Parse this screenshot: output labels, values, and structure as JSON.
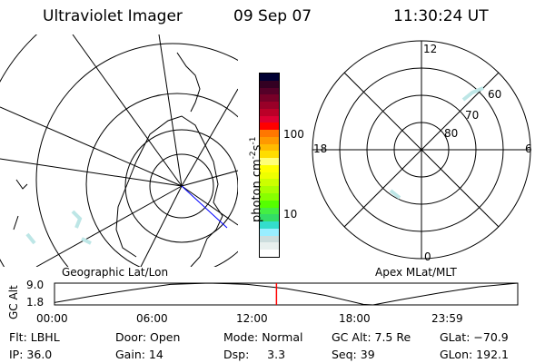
{
  "header": {
    "instrument": "Ultraviolet Imager",
    "date": "09 Sep 07",
    "time": "11:30:24 UT"
  },
  "colorbar": {
    "label": "photon cm",
    "label_sup1": "-2",
    "label_mid": "s",
    "label_sup2": "-1",
    "ticks": [
      "100",
      "10"
    ],
    "colors": [
      "#000033",
      "#330022",
      "#550028",
      "#770028",
      "#990028",
      "#bb0028",
      "#dd0033",
      "#ff0000",
      "#ff7700",
      "#ff9900",
      "#ffbb00",
      "#ffdd00",
      "#ffff77",
      "#ffff00",
      "#eeff00",
      "#ccff00",
      "#aaff00",
      "#88ff00",
      "#55ff00",
      "#44ee44",
      "#33dd66",
      "#33ddcc",
      "#99eeff",
      "#ccdddd",
      "#e8f0ee",
      "#ffffff"
    ]
  },
  "left_map": {
    "label": "Geographic Lat/Lon"
  },
  "right_map": {
    "label": "Apex MLat/MLT",
    "mlt_labels": {
      "top": "12",
      "left": "18",
      "right": "6",
      "bottom": "0"
    },
    "lat_labels": [
      "60",
      "70",
      "80"
    ]
  },
  "chart_data": {
    "type": "line",
    "ylabel": "GC Alt",
    "yticks": [
      "9.0",
      "1.8"
    ],
    "ylim": [
      1.8,
      9.0
    ],
    "xticks": [
      "00:00",
      "06:00",
      "12:00",
      "18:00",
      "23:59"
    ],
    "x": [
      0,
      2,
      4,
      6,
      8,
      10,
      12,
      14,
      16,
      16.5,
      18,
      20,
      22,
      24
    ],
    "values": [
      2.6,
      4.8,
      6.8,
      8.6,
      9.0,
      8.6,
      7.2,
      5.0,
      2.0,
      1.8,
      3.6,
      5.8,
      7.8,
      9.0
    ],
    "current_time_marker": 11.5,
    "marker_color": "#ff0000"
  },
  "info": {
    "filter": "Flt: LBHL",
    "ip": "IP: 36.0",
    "door": "Door: Open",
    "gain": "Gain: 14",
    "mode": "Mode: Normal",
    "dsp": "Dsp:     3.3",
    "gc_alt": "GC Alt: 7.5 Re",
    "seq": "Seq: 39",
    "glat": "GLat: −70.9",
    "glon": "GLon: 192.1"
  }
}
